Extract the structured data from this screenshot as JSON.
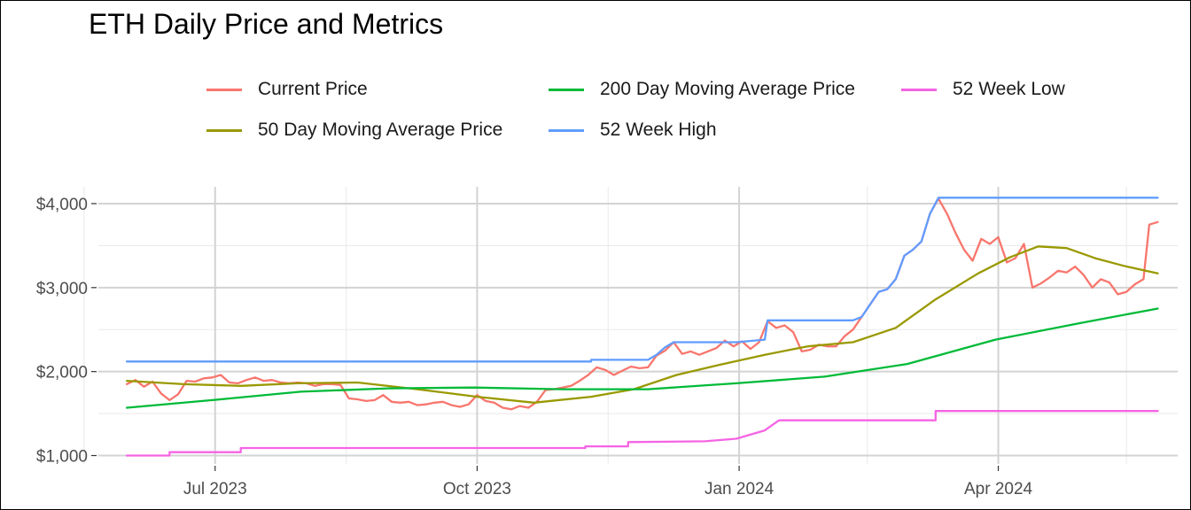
{
  "chart_data": {
    "type": "line",
    "title": "ETH Daily Price and Metrics",
    "xlabel": "",
    "ylabel": "",
    "xlim": [
      "2023-05-21",
      "2024-06-03"
    ],
    "ylim": [
      900,
      4200
    ],
    "x_ticks": [
      {
        "date": "2023-07-01",
        "label": "Jul 2023"
      },
      {
        "date": "2023-10-01",
        "label": "Oct 2023"
      },
      {
        "date": "2024-01-01",
        "label": "Jan 2024"
      },
      {
        "date": "2024-04-01",
        "label": "Apr 2024"
      }
    ],
    "x_minor_ticks": [
      "2023-05-16",
      "2023-08-16",
      "2023-11-16",
      "2024-02-15",
      "2024-05-16"
    ],
    "y_ticks": [
      {
        "value": 1000,
        "label": "$1,000"
      },
      {
        "value": 2000,
        "label": "$2,000"
      },
      {
        "value": 3000,
        "label": "$3,000"
      },
      {
        "value": 4000,
        "label": "$4,000"
      }
    ],
    "y_minor_ticks": [
      1500,
      2500,
      3500
    ],
    "grid": true,
    "legend_position": "top",
    "series": [
      {
        "name": "Current Price",
        "color": "#F8766D",
        "points": [
          [
            "2023-05-31",
            1850
          ],
          [
            "2023-06-03",
            1900
          ],
          [
            "2023-06-06",
            1820
          ],
          [
            "2023-06-09",
            1880
          ],
          [
            "2023-06-12",
            1740
          ],
          [
            "2023-06-15",
            1660
          ],
          [
            "2023-06-18",
            1730
          ],
          [
            "2023-06-21",
            1890
          ],
          [
            "2023-06-24",
            1880
          ],
          [
            "2023-06-27",
            1920
          ],
          [
            "2023-06-30",
            1930
          ],
          [
            "2023-07-03",
            1960
          ],
          [
            "2023-07-06",
            1870
          ],
          [
            "2023-07-09",
            1860
          ],
          [
            "2023-07-12",
            1900
          ],
          [
            "2023-07-15",
            1930
          ],
          [
            "2023-07-18",
            1890
          ],
          [
            "2023-07-21",
            1900
          ],
          [
            "2023-07-24",
            1870
          ],
          [
            "2023-07-27",
            1860
          ],
          [
            "2023-07-30",
            1870
          ],
          [
            "2023-08-02",
            1860
          ],
          [
            "2023-08-05",
            1830
          ],
          [
            "2023-08-08",
            1850
          ],
          [
            "2023-08-11",
            1850
          ],
          [
            "2023-08-14",
            1840
          ],
          [
            "2023-08-17",
            1680
          ],
          [
            "2023-08-20",
            1670
          ],
          [
            "2023-08-23",
            1650
          ],
          [
            "2023-08-26",
            1660
          ],
          [
            "2023-08-29",
            1720
          ],
          [
            "2023-09-01",
            1640
          ],
          [
            "2023-09-04",
            1630
          ],
          [
            "2023-09-07",
            1640
          ],
          [
            "2023-09-10",
            1600
          ],
          [
            "2023-09-13",
            1610
          ],
          [
            "2023-09-16",
            1630
          ],
          [
            "2023-09-19",
            1640
          ],
          [
            "2023-09-22",
            1600
          ],
          [
            "2023-09-25",
            1580
          ],
          [
            "2023-09-28",
            1610
          ],
          [
            "2023-10-01",
            1720
          ],
          [
            "2023-10-04",
            1650
          ],
          [
            "2023-10-07",
            1630
          ],
          [
            "2023-10-10",
            1570
          ],
          [
            "2023-10-13",
            1550
          ],
          [
            "2023-10-16",
            1590
          ],
          [
            "2023-10-19",
            1570
          ],
          [
            "2023-10-22",
            1640
          ],
          [
            "2023-10-25",
            1780
          ],
          [
            "2023-10-28",
            1790
          ],
          [
            "2023-10-31",
            1810
          ],
          [
            "2023-11-03",
            1830
          ],
          [
            "2023-11-06",
            1890
          ],
          [
            "2023-11-09",
            1960
          ],
          [
            "2023-11-12",
            2050
          ],
          [
            "2023-11-15",
            2020
          ],
          [
            "2023-11-18",
            1960
          ],
          [
            "2023-11-21",
            2010
          ],
          [
            "2023-11-24",
            2060
          ],
          [
            "2023-11-27",
            2040
          ],
          [
            "2023-11-30",
            2050
          ],
          [
            "2023-12-03",
            2190
          ],
          [
            "2023-12-06",
            2250
          ],
          [
            "2023-12-09",
            2350
          ],
          [
            "2023-12-12",
            2210
          ],
          [
            "2023-12-15",
            2240
          ],
          [
            "2023-12-18",
            2200
          ],
          [
            "2023-12-21",
            2240
          ],
          [
            "2023-12-24",
            2280
          ],
          [
            "2023-12-27",
            2370
          ],
          [
            "2023-12-30",
            2300
          ],
          [
            "2024-01-02",
            2360
          ],
          [
            "2024-01-05",
            2270
          ],
          [
            "2024-01-08",
            2350
          ],
          [
            "2024-01-11",
            2600
          ],
          [
            "2024-01-14",
            2520
          ],
          [
            "2024-01-17",
            2550
          ],
          [
            "2024-01-20",
            2470
          ],
          [
            "2024-01-23",
            2240
          ],
          [
            "2024-01-26",
            2260
          ],
          [
            "2024-01-29",
            2320
          ],
          [
            "2024-02-01",
            2300
          ],
          [
            "2024-02-04",
            2300
          ],
          [
            "2024-02-07",
            2420
          ],
          [
            "2024-02-10",
            2500
          ],
          [
            "2024-02-13",
            2650
          ],
          [
            "2024-02-16",
            2800
          ],
          [
            "2024-02-19",
            2950
          ],
          [
            "2024-02-22",
            2980
          ],
          [
            "2024-02-25",
            3100
          ],
          [
            "2024-02-28",
            3380
          ],
          [
            "2024-03-02",
            3450
          ],
          [
            "2024-03-05",
            3550
          ],
          [
            "2024-03-08",
            3880
          ],
          [
            "2024-03-11",
            4060
          ],
          [
            "2024-03-14",
            3880
          ],
          [
            "2024-03-17",
            3650
          ],
          [
            "2024-03-20",
            3450
          ],
          [
            "2024-03-23",
            3320
          ],
          [
            "2024-03-26",
            3580
          ],
          [
            "2024-03-29",
            3520
          ],
          [
            "2024-04-01",
            3600
          ],
          [
            "2024-04-04",
            3300
          ],
          [
            "2024-04-07",
            3350
          ],
          [
            "2024-04-10",
            3520
          ],
          [
            "2024-04-13",
            3000
          ],
          [
            "2024-04-16",
            3050
          ],
          [
            "2024-04-19",
            3120
          ],
          [
            "2024-04-22",
            3200
          ],
          [
            "2024-04-25",
            3180
          ],
          [
            "2024-04-28",
            3250
          ],
          [
            "2024-05-01",
            3150
          ],
          [
            "2024-05-04",
            3000
          ],
          [
            "2024-05-07",
            3100
          ],
          [
            "2024-05-10",
            3060
          ],
          [
            "2024-05-13",
            2920
          ],
          [
            "2024-05-16",
            2950
          ],
          [
            "2024-05-19",
            3040
          ],
          [
            "2024-05-22",
            3100
          ],
          [
            "2024-05-24",
            3750
          ],
          [
            "2024-05-27",
            3780
          ]
        ]
      },
      {
        "name": "50 Day Moving Average Price",
        "color": "#999900",
        "points": [
          [
            "2023-05-31",
            1890
          ],
          [
            "2023-06-20",
            1850
          ],
          [
            "2023-07-10",
            1830
          ],
          [
            "2023-07-30",
            1860
          ],
          [
            "2023-08-20",
            1870
          ],
          [
            "2023-09-10",
            1790
          ],
          [
            "2023-10-01",
            1700
          ],
          [
            "2023-10-21",
            1630
          ],
          [
            "2023-11-10",
            1700
          ],
          [
            "2023-11-25",
            1790
          ],
          [
            "2023-12-10",
            1960
          ],
          [
            "2023-12-25",
            2080
          ],
          [
            "2024-01-10",
            2200
          ],
          [
            "2024-01-25",
            2300
          ],
          [
            "2024-02-10",
            2350
          ],
          [
            "2024-02-25",
            2520
          ],
          [
            "2024-03-10",
            2860
          ],
          [
            "2024-03-25",
            3170
          ],
          [
            "2024-04-05",
            3360
          ],
          [
            "2024-04-15",
            3490
          ],
          [
            "2024-04-25",
            3470
          ],
          [
            "2024-05-05",
            3350
          ],
          [
            "2024-05-15",
            3260
          ],
          [
            "2024-05-27",
            3170
          ]
        ]
      },
      {
        "name": "200 Day Moving Average Price",
        "color": "#00BA38",
        "points": [
          [
            "2023-05-31",
            1570
          ],
          [
            "2023-06-30",
            1660
          ],
          [
            "2023-07-31",
            1760
          ],
          [
            "2023-08-31",
            1800
          ],
          [
            "2023-09-30",
            1810
          ],
          [
            "2023-10-31",
            1790
          ],
          [
            "2023-11-30",
            1790
          ],
          [
            "2023-12-31",
            1860
          ],
          [
            "2024-01-31",
            1940
          ],
          [
            "2024-02-29",
            2090
          ],
          [
            "2024-03-31",
            2380
          ],
          [
            "2024-04-30",
            2580
          ],
          [
            "2024-05-27",
            2750
          ]
        ]
      },
      {
        "name": "52 Week High",
        "color": "#619CFF",
        "points": [
          [
            "2023-05-31",
            2120
          ],
          [
            "2023-11-10",
            2120
          ],
          [
            "2023-11-10",
            2140
          ],
          [
            "2023-11-30",
            2140
          ],
          [
            "2023-12-03",
            2200
          ],
          [
            "2023-12-06",
            2290
          ],
          [
            "2023-12-09",
            2350
          ],
          [
            "2023-12-31",
            2350
          ],
          [
            "2024-01-10",
            2380
          ],
          [
            "2024-01-11",
            2610
          ],
          [
            "2024-01-31",
            2610
          ],
          [
            "2024-02-10",
            2610
          ],
          [
            "2024-02-13",
            2650
          ],
          [
            "2024-02-16",
            2800
          ],
          [
            "2024-02-19",
            2950
          ],
          [
            "2024-02-22",
            2980
          ],
          [
            "2024-02-25",
            3100
          ],
          [
            "2024-02-28",
            3380
          ],
          [
            "2024-03-02",
            3450
          ],
          [
            "2024-03-05",
            3550
          ],
          [
            "2024-03-08",
            3880
          ],
          [
            "2024-03-11",
            4070
          ],
          [
            "2024-05-27",
            4070
          ]
        ]
      },
      {
        "name": "52 Week Low",
        "color": "#F564E3",
        "points": [
          [
            "2023-05-31",
            1000
          ],
          [
            "2023-06-15",
            1000
          ],
          [
            "2023-06-15",
            1040
          ],
          [
            "2023-07-10",
            1040
          ],
          [
            "2023-07-10",
            1090
          ],
          [
            "2023-11-08",
            1090
          ],
          [
            "2023-11-08",
            1110
          ],
          [
            "2023-11-23",
            1110
          ],
          [
            "2023-11-23",
            1160
          ],
          [
            "2023-12-20",
            1170
          ],
          [
            "2023-12-31",
            1200
          ],
          [
            "2024-01-10",
            1300
          ],
          [
            "2024-01-15",
            1420
          ],
          [
            "2024-03-10",
            1420
          ],
          [
            "2024-03-10",
            1530
          ],
          [
            "2024-05-27",
            1530
          ]
        ]
      }
    ]
  }
}
